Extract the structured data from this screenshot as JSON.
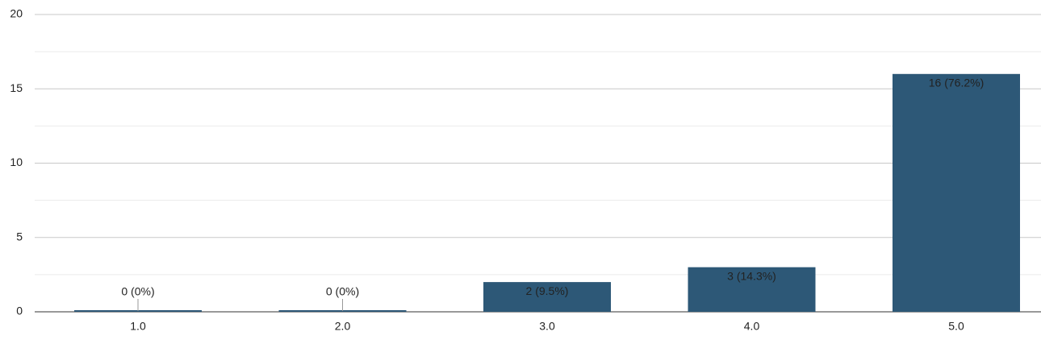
{
  "chart_data": {
    "type": "bar",
    "categories": [
      "1.0",
      "2.0",
      "3.0",
      "4.0",
      "5.0"
    ],
    "values": [
      0,
      0,
      2,
      3,
      16
    ],
    "value_labels": [
      "0 (0%)",
      "0 (0%)",
      "2 (9.5%)",
      "3 (14.3%)",
      "16 (76.2%)"
    ],
    "color": "#2d5877",
    "ylim": [
      0,
      20
    ],
    "yticks": [
      0,
      5,
      10,
      15,
      20
    ],
    "minor_gridlines": [
      2.5,
      7.5,
      12.5,
      17.5
    ],
    "grid": true
  }
}
